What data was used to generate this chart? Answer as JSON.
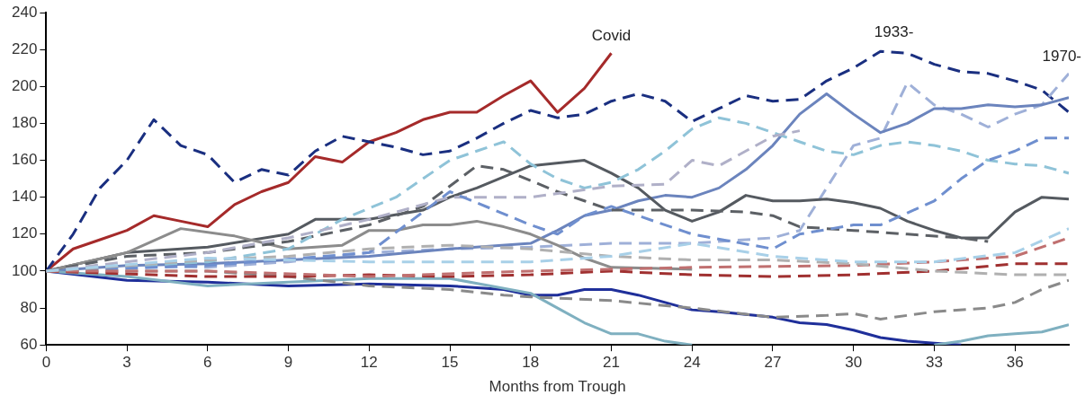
{
  "chart_data": {
    "type": "line",
    "xlabel": "Months from Trough",
    "xlim": [
      0,
      38
    ],
    "xticks": [
      0,
      3,
      6,
      9,
      12,
      15,
      18,
      21,
      24,
      27,
      30,
      33,
      36
    ],
    "ylim": [
      60,
      240
    ],
    "yticks": [
      60,
      80,
      100,
      120,
      140,
      160,
      180,
      200,
      220,
      240
    ],
    "grid": false,
    "legend": false,
    "marker": "none",
    "annotations": [
      {
        "text": "Covid",
        "x": 21,
        "y": 218
      },
      {
        "text": "1933-",
        "x": 31.5,
        "y": 220
      },
      {
        "text": "1970-",
        "x": 38,
        "y": 207
      }
    ],
    "series": [
      {
        "color": "#a8d0e8",
        "line_style": "dashed",
        "x": [
          0,
          6,
          12,
          18,
          21,
          24,
          27,
          30,
          33,
          36,
          38
        ],
        "values": [
          100,
          107,
          105,
          105,
          108,
          115,
          108,
          105,
          105,
          110,
          123
        ]
      },
      {
        "color": "#b0b0b0",
        "line_style": "dashed",
        "x": [
          0,
          6,
          9,
          12,
          15,
          18,
          21,
          24,
          27,
          30,
          33,
          36,
          38
        ],
        "values": [
          100,
          106,
          108,
          112,
          114,
          112,
          108,
          106,
          106,
          104,
          100,
          98,
          98
        ]
      },
      {
        "color": "#c07070",
        "line_style": "dashed",
        "x": [
          0,
          6,
          12,
          18,
          24,
          30,
          33,
          36,
          38
        ],
        "values": [
          100,
          100,
          97,
          100,
          102,
          103,
          105,
          108,
          118
        ]
      },
      {
        "color": "#a03030",
        "line_style": "dashed",
        "x": [
          0,
          6,
          9,
          12,
          15,
          18,
          21,
          24,
          27,
          30,
          33,
          36,
          38
        ],
        "values": [
          100,
          97,
          97,
          98,
          97,
          98,
          100,
          98,
          97,
          98,
          100,
          104,
          104
        ]
      },
      {
        "color": "#8a8a8a",
        "line_style": "dashed",
        "x": [
          0,
          6,
          9,
          12,
          15,
          17,
          18,
          21,
          24,
          27,
          29,
          30,
          31,
          32,
          33,
          35,
          36,
          37,
          38
        ],
        "values": [
          100,
          100,
          97,
          92,
          90,
          87,
          86,
          84,
          80,
          75,
          76,
          77,
          74,
          76,
          78,
          80,
          83,
          90,
          95
        ]
      },
      {
        "color": "#7fb0c0",
        "line_style": "solid",
        "x": [
          0,
          3,
          6,
          9,
          12,
          15,
          18,
          19,
          20,
          21,
          22,
          23,
          24,
          25,
          32,
          33,
          34,
          35,
          36,
          37,
          38
        ],
        "values": [
          100,
          97,
          92,
          94,
          96,
          96,
          88,
          80,
          72,
          66,
          66,
          62,
          60,
          null,
          null,
          60,
          62,
          65,
          66,
          67,
          71
        ]
      },
      {
        "color": "#1f2f9a",
        "line_style": "solid",
        "x": [
          0,
          3,
          6,
          9,
          12,
          15,
          17,
          18,
          19,
          20,
          21,
          22,
          23,
          24,
          25,
          27,
          28,
          29,
          30,
          31,
          32,
          33,
          34
        ],
        "values": [
          100,
          95,
          94,
          92,
          93,
          92,
          90,
          87,
          87,
          90,
          90,
          87,
          83,
          79,
          78,
          75,
          72,
          71,
          68,
          64,
          62,
          61,
          60
        ]
      },
      {
        "color": "#6f8fcf",
        "line_style": "dashed",
        "x": [
          0,
          6,
          12,
          15,
          18,
          19,
          20,
          21,
          24,
          27,
          28,
          30,
          31,
          33,
          34,
          35,
          36,
          37,
          38
        ],
        "values": [
          100,
          103,
          110,
          143,
          125,
          120,
          130,
          135,
          120,
          112,
          120,
          125,
          125,
          138,
          150,
          160,
          165,
          172,
          172
        ]
      },
      {
        "color": "#b0b0c8",
        "line_style": "dashed",
        "x": [
          0,
          6,
          9,
          12,
          15,
          18,
          21,
          23,
          24,
          25,
          27,
          28
        ],
        "values": [
          100,
          110,
          118,
          128,
          140,
          140,
          146,
          147,
          160,
          157,
          173,
          176
        ]
      },
      {
        "color": "#8fc3d8",
        "line_style": "dashed",
        "x": [
          0,
          6,
          9,
          11,
          13,
          15,
          16,
          17,
          18,
          19,
          20,
          21,
          22,
          23,
          24,
          25,
          26,
          27,
          28,
          29,
          30,
          31,
          32,
          33,
          34,
          35,
          36,
          37,
          38
        ],
        "values": [
          100,
          105,
          112,
          128,
          140,
          160,
          165,
          170,
          158,
          150,
          145,
          148,
          155,
          165,
          177,
          183,
          180,
          175,
          170,
          165,
          163,
          168,
          170,
          168,
          165,
          160,
          158,
          157,
          153
        ]
      },
      {
        "color": "#5c6065",
        "line_style": "dashed",
        "x": [
          0,
          3,
          6,
          9,
          12,
          14,
          16,
          17,
          19,
          20,
          21,
          22,
          24,
          26,
          27,
          28,
          30,
          32,
          34,
          35
        ],
        "values": [
          100,
          108,
          110,
          116,
          125,
          135,
          157,
          155,
          143,
          138,
          133,
          133,
          133,
          132,
          130,
          124,
          122,
          120,
          118,
          116
        ]
      },
      {
        "color": "#8c8c8c",
        "line_style": "solid",
        "x": [
          0,
          3,
          5,
          7,
          9,
          11,
          12,
          13,
          14,
          15,
          16,
          17,
          18,
          19,
          20,
          21,
          24
        ],
        "values": [
          100,
          110,
          123,
          119,
          112,
          114,
          122,
          122,
          125,
          125,
          127,
          124,
          120,
          114,
          107,
          102,
          101
        ]
      },
      {
        "color": "#555a60",
        "line_style": "solid",
        "x": [
          0,
          3,
          6,
          9,
          10,
          12,
          14,
          15,
          16,
          18,
          20,
          21,
          22,
          23,
          24,
          25,
          26,
          27,
          28,
          29,
          30,
          31,
          32,
          33,
          34,
          35,
          36,
          37,
          38
        ],
        "values": [
          100,
          110,
          113,
          120,
          128,
          128,
          133,
          140,
          145,
          157,
          160,
          153,
          145,
          133,
          127,
          132,
          141,
          138,
          138,
          139,
          137,
          134,
          127,
          122,
          118,
          118,
          132,
          140,
          139
        ]
      },
      {
        "color": "#6b84bd",
        "line_style": "solid",
        "x": [
          0,
          3,
          6,
          9,
          12,
          15,
          18,
          19,
          20,
          21,
          22,
          23,
          24,
          25,
          26,
          27,
          28,
          29,
          30,
          31,
          32,
          33,
          34,
          35,
          36,
          37,
          38
        ],
        "values": [
          100,
          103,
          104,
          106,
          108,
          112,
          115,
          122,
          130,
          133,
          138,
          141,
          140,
          145,
          155,
          168,
          185,
          196,
          185,
          175,
          180,
          188,
          188,
          190,
          189,
          190,
          194
        ]
      },
      {
        "color": "#9fb0d8",
        "line_style": "dashed",
        "x": [
          0,
          3,
          6,
          9,
          12,
          15,
          18,
          21,
          24,
          27,
          28,
          29,
          30,
          31,
          32,
          33,
          34,
          35,
          36,
          37,
          38
        ],
        "values": [
          100,
          103,
          102,
          105,
          110,
          112,
          113,
          115,
          115,
          118,
          122,
          145,
          168,
          172,
          202,
          190,
          185,
          178,
          185,
          190,
          207
        ]
      },
      {
        "color": "#1a2f80",
        "line_style": "dashed",
        "x": [
          0,
          1,
          2,
          3,
          4,
          5,
          6,
          7,
          8,
          9,
          10,
          11,
          12,
          13,
          14,
          15,
          16,
          17,
          18,
          19,
          20,
          21,
          22,
          23,
          24,
          25,
          26,
          27,
          28,
          29,
          30,
          31,
          32,
          33,
          34,
          35,
          36,
          37,
          38
        ],
        "values": [
          100,
          120,
          145,
          160,
          182,
          168,
          163,
          148,
          155,
          152,
          165,
          173,
          170,
          167,
          163,
          165,
          172,
          180,
          187,
          183,
          185,
          192,
          196,
          192,
          181,
          188,
          195,
          192,
          193,
          203,
          210,
          219,
          218,
          212,
          208,
          207,
          203,
          198,
          186
        ]
      },
      {
        "color": "#a52a2a",
        "line_style": "solid",
        "x": [
          0,
          1,
          2,
          3,
          4,
          5,
          6,
          7,
          8,
          9,
          10,
          11,
          12,
          13,
          14,
          15,
          16,
          17,
          18,
          19,
          20,
          21
        ],
        "values": [
          100,
          112,
          117,
          122,
          130,
          127,
          124,
          136,
          143,
          148,
          162,
          159,
          170,
          175,
          182,
          186,
          186,
          195,
          203,
          186,
          199,
          218
        ]
      }
    ]
  }
}
